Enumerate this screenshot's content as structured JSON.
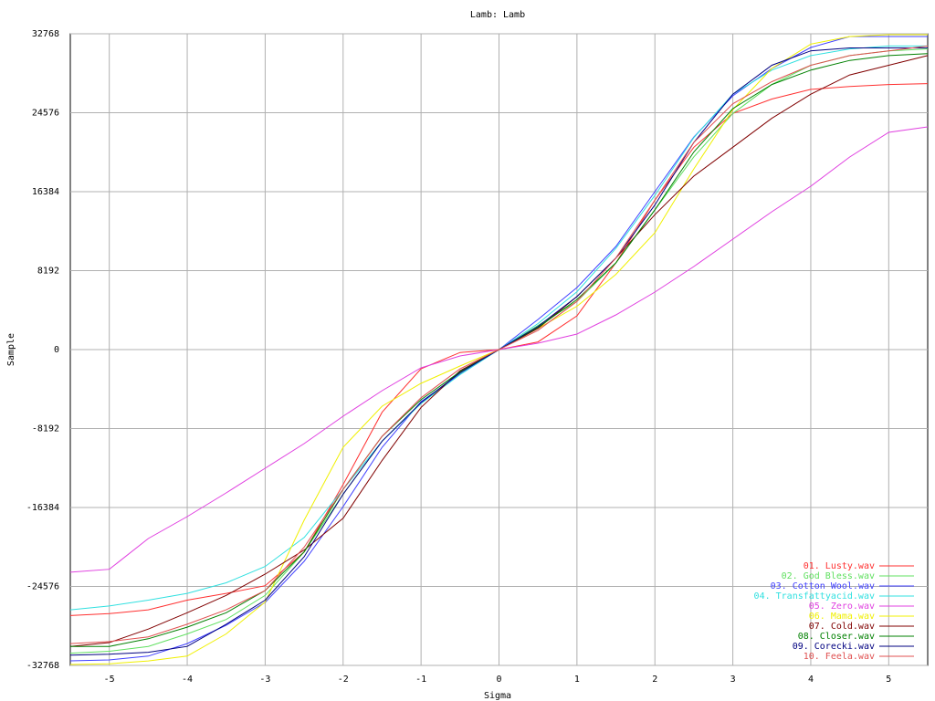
{
  "chart_data": {
    "type": "line",
    "title": "Lamb: Lamb",
    "x_label": "Sigma",
    "y_label": "Sample",
    "x": [
      -5.5,
      -5,
      -4.5,
      -4,
      -3.5,
      -3,
      -2.5,
      -2,
      -1.5,
      -1,
      -0.5,
      0,
      0.5,
      1,
      1.5,
      2,
      2.5,
      3,
      3.5,
      4,
      4.5,
      5,
      5.5
    ],
    "xlim": [
      -5.5,
      5.5
    ],
    "xticks": [
      -5,
      -4,
      -3,
      -2,
      -1,
      0,
      1,
      2,
      3,
      4,
      5
    ],
    "ylim": [
      -32768,
      32768
    ],
    "yticks": [
      -32768,
      -24576,
      -16384,
      -8192,
      0,
      8192,
      16384,
      24576,
      32768
    ],
    "grid": true,
    "legend": "lower right",
    "series": [
      {
        "name": "01. Lusty.wav",
        "color": "#ff3030",
        "values": [
          -27600,
          -27400,
          -27000,
          -26000,
          -25300,
          -24500,
          -21000,
          -14000,
          -6500,
          -2000,
          -300,
          0,
          800,
          3500,
          9000,
          15500,
          21000,
          24500,
          26000,
          27000,
          27300,
          27500,
          27600
        ]
      },
      {
        "name": "02. God Bless.wav",
        "color": "#60e060",
        "values": [
          -31500,
          -31300,
          -30800,
          -29500,
          -28000,
          -25500,
          -21000,
          -15000,
          -9500,
          -5500,
          -2500,
          0,
          2500,
          5000,
          9000,
          14500,
          20000,
          24500,
          27500,
          29500,
          30500,
          31000,
          31200
        ]
      },
      {
        "name": "03. Cotton Wool.wav",
        "color": "#4040ff",
        "values": [
          -32290,
          -32200,
          -31800,
          -30500,
          -28600,
          -26230,
          -21970,
          -16290,
          -10130,
          -5400,
          -2560,
          0,
          3125,
          6440,
          10700,
          16380,
          22060,
          26330,
          29170,
          31350,
          32480,
          32480,
          32480
        ]
      },
      {
        "name": "04. Transfattyacid.wav",
        "color": "#30e0e0",
        "values": [
          -27000,
          -26600,
          -26000,
          -25300,
          -24200,
          -22500,
          -19500,
          -14500,
          -9500,
          -5600,
          -2600,
          0,
          2700,
          6000,
          10500,
          16000,
          22000,
          26500,
          29000,
          30500,
          31200,
          31500,
          31500
        ]
      },
      {
        "name": "05. Zero.wav",
        "color": "#e040e0",
        "values": [
          -23100,
          -22800,
          -19600,
          -17330,
          -14870,
          -12310,
          -9750,
          -6910,
          -4260,
          -1890,
          -660,
          0,
          660,
          1610,
          3600,
          5970,
          8620,
          11460,
          14300,
          16950,
          19980,
          22540,
          23110
        ]
      },
      {
        "name": "06. Mama.wav",
        "color": "#f0f000",
        "values": [
          -32670,
          -32600,
          -32300,
          -31800,
          -29500,
          -26200,
          -17700,
          -10130,
          -5870,
          -3500,
          -1700,
          0,
          2200,
          4500,
          7800,
          12120,
          18750,
          24900,
          29170,
          31700,
          32480,
          32670,
          32670
        ]
      },
      {
        "name": "07. Cold.wav",
        "color": "#800000",
        "values": [
          -30800,
          -30400,
          -29000,
          -27300,
          -25500,
          -23300,
          -20800,
          -17500,
          -11500,
          -6000,
          -2200,
          0,
          2200,
          5500,
          9500,
          14000,
          18000,
          21000,
          24000,
          26500,
          28500,
          29500,
          30500
        ]
      },
      {
        "name": "08. Closer.wav",
        "color": "#008000",
        "values": [
          -30800,
          -30800,
          -30000,
          -28800,
          -27300,
          -25000,
          -21000,
          -14500,
          -9000,
          -5200,
          -2300,
          0,
          2300,
          5200,
          9000,
          14500,
          20500,
          25000,
          27500,
          29000,
          30000,
          30500,
          30700
        ]
      },
      {
        "name": "09. Corecki.wav",
        "color": "#000080",
        "values": [
          -31700,
          -31600,
          -31400,
          -30800,
          -28500,
          -26000,
          -21500,
          -15000,
          -9500,
          -5500,
          -2400,
          0,
          2400,
          5500,
          9500,
          15000,
          21500,
          26500,
          29500,
          31000,
          31300,
          31300,
          31300
        ]
      },
      {
        "name": "10. Feela.wav",
        "color": "#e05050",
        "values": [
          -30500,
          -30300,
          -29800,
          -28500,
          -27000,
          -25000,
          -20500,
          -14500,
          -9000,
          -5000,
          -2000,
          0,
          2000,
          5000,
          9500,
          15500,
          21500,
          25500,
          27800,
          29500,
          30500,
          31000,
          31500
        ]
      }
    ]
  }
}
